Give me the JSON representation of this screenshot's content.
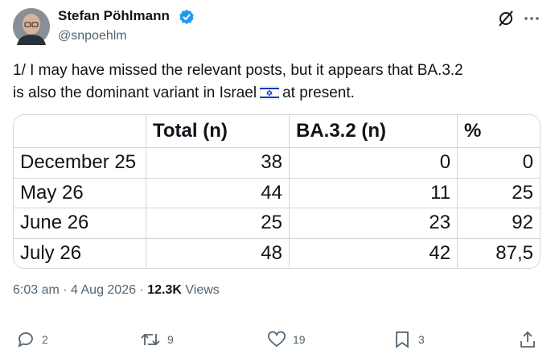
{
  "author": {
    "name": "Stefan Pöhlmann",
    "handle": "@snpoehlm"
  },
  "post": {
    "text_before": "1/ I may have missed the relevant posts, but it appears that BA.3.2 is also the dominant variant in Israel",
    "text_after": "at present."
  },
  "table": {
    "header": [
      "Total (n)",
      "BA.3.2 (n)",
      "%"
    ],
    "rows": [
      [
        "December 25",
        38,
        0,
        0
      ],
      [
        "May 26",
        44,
        11,
        25
      ],
      [
        "June 26",
        25,
        23,
        92
      ],
      [
        "July 26",
        48,
        42,
        "87,5"
      ]
    ]
  },
  "meta": {
    "time": "6:03 am",
    "date": "4 Aug 2026",
    "views": "12.3K",
    "views_label": "Views"
  },
  "actions": {
    "replies": 2,
    "reposts": 9,
    "likes": 19,
    "bookmarks": 3
  }
}
